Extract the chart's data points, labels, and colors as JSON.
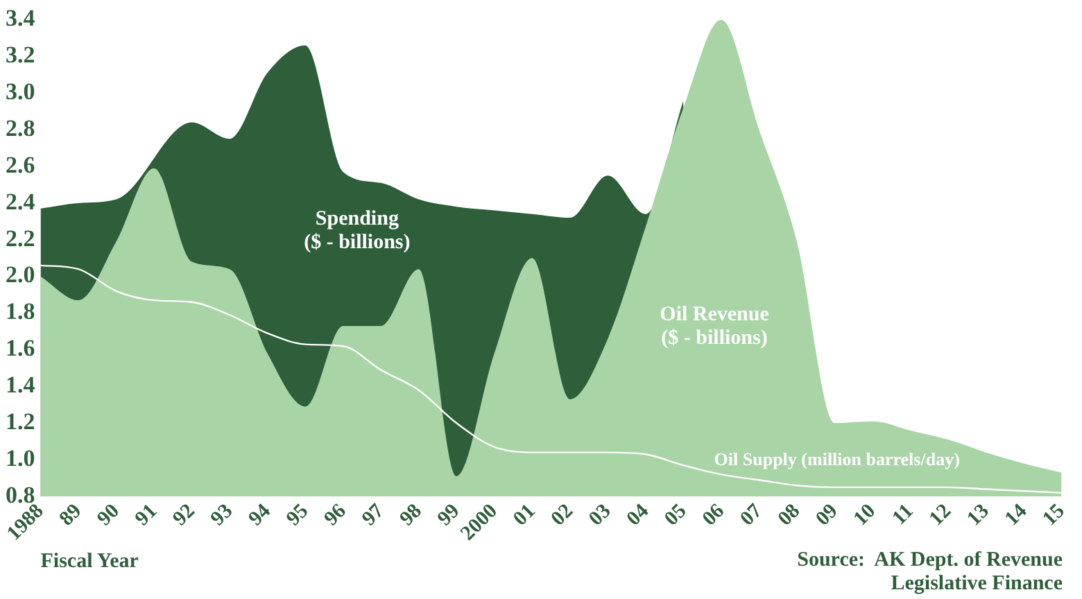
{
  "chart_data": {
    "type": "area",
    "xlabel": "Fiscal Year",
    "categories": [
      "1988",
      "89",
      "90",
      "91",
      "92",
      "93",
      "94",
      "95",
      "96",
      "97",
      "98",
      "99",
      "2000",
      "01",
      "02",
      "03",
      "04",
      "05",
      "06",
      "07",
      "08",
      "09",
      "10",
      "11",
      "12",
      "13",
      "14",
      "15"
    ],
    "series": [
      {
        "name": "Spending\n($ - billions)",
        "color": "#2e5e3a",
        "values": [
          2.37,
          2.4,
          2.42,
          null,
          2.84,
          2.75,
          3.11,
          3.26,
          2.57,
          2.51,
          2.42,
          2.38,
          2.36,
          2.34,
          2.32,
          2.55,
          2.34,
          2.96,
          null,
          null,
          null,
          null,
          null,
          null,
          null,
          null,
          null,
          null
        ]
      },
      {
        "name": "Oil Revenue\n($ - billions)",
        "color": "#a8d4a6",
        "values": [
          2.0,
          1.87,
          2.19,
          2.59,
          2.08,
          2.04,
          1.58,
          1.29,
          1.73,
          1.73,
          2.04,
          0.91,
          1.58,
          2.1,
          1.33,
          1.66,
          2.27,
          2.92,
          3.4,
          2.8,
          2.19,
          1.2,
          1.21,
          1.16,
          1.11,
          1.04,
          0.98,
          0.93
        ]
      },
      {
        "name": "Oil Supply (million barrels/day)",
        "type": "line",
        "color": "#ffffff",
        "values": [
          2.06,
          2.04,
          1.92,
          1.87,
          1.86,
          1.79,
          1.69,
          1.63,
          1.62,
          1.49,
          1.38,
          1.2,
          1.07,
          1.04,
          1.04,
          1.04,
          1.03,
          0.97,
          0.92,
          0.89,
          0.86,
          0.85,
          0.85,
          0.85,
          0.85,
          0.84,
          0.83,
          0.82
        ]
      }
    ],
    "ylim": [
      0.8,
      3.4
    ],
    "yticks": [
      0.8,
      {
        "value": 1,
        "label": "1.0"
      },
      1.2,
      1.4,
      1.6,
      1.8,
      {
        "value": 2,
        "label": "2.0"
      },
      2.2,
      2.4,
      2.6,
      2.8,
      {
        "value": 3,
        "label": "3.0"
      },
      3.2,
      3.4
    ],
    "grid": false,
    "legend": false,
    "marker": "none",
    "annotations": [
      "Source:  AK Dept. of Revenue\nLegislative Finance"
    ]
  }
}
